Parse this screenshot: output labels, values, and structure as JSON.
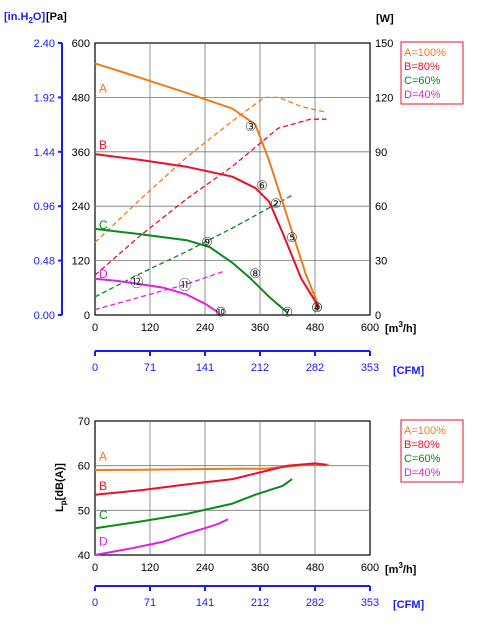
{
  "colors": {
    "A": "#f07a1a",
    "B": "#e8102a",
    "C": "#0a8a1a",
    "D": "#e020e0",
    "secondary_axis": "#1a1aff",
    "legend_border": "#e8102a"
  },
  "legend": {
    "A": "A=100%",
    "B": "B=80%",
    "C": "C=60%",
    "D": "D=40%"
  },
  "chart_data": [
    {
      "type": "line",
      "name": "performance",
      "xlabel_html": "[m³/h]",
      "x_unit_base": "[m",
      "x_unit_sup": "3",
      "x_unit_tail": "/h]",
      "xlim": [
        0,
        600
      ],
      "x_ticks": [
        "0",
        "120",
        "240",
        "360",
        "480",
        "600"
      ],
      "y_left_pa_label": "[Pa]",
      "y_left_pa_ticks": [
        "0",
        "120",
        "240",
        "360",
        "480",
        "600"
      ],
      "ylim_pa": [
        0,
        600
      ],
      "y_left_inh2o_label_base": "[in.H",
      "y_left_inh2o_sub": "2",
      "y_left_inh2o_tail": "O]",
      "y_left_inh2o_ticks": [
        "0.00",
        "0.48",
        "0.96",
        "1.44",
        "1.92",
        "2.40"
      ],
      "y_right_label": "[W]",
      "y_right_ticks": [
        "0",
        "30",
        "60",
        "90",
        "120",
        "150"
      ],
      "ylim_w": [
        0,
        150
      ],
      "cfm_label": "[CFM]",
      "cfm_ticks": [
        "0",
        "71",
        "141",
        "212",
        "282",
        "353"
      ],
      "curve_letters": [
        "A",
        "B",
        "C",
        "D"
      ],
      "pressure_series": [
        {
          "name": "A",
          "x": [
            0,
            100,
            200,
            300,
            350,
            380,
            420,
            460,
            490
          ],
          "y": [
            555,
            523,
            490,
            455,
            420,
            340,
            215,
            90,
            15
          ]
        },
        {
          "name": "B",
          "x": [
            0,
            100,
            200,
            300,
            350,
            380,
            410,
            450,
            490
          ],
          "y": [
            355,
            342,
            327,
            305,
            280,
            250,
            180,
            80,
            15
          ]
        },
        {
          "name": "C",
          "x": [
            0,
            100,
            200,
            250,
            300,
            340,
            380,
            420
          ],
          "y": [
            190,
            178,
            165,
            150,
            115,
            80,
            40,
            5
          ]
        },
        {
          "name": "D",
          "x": [
            0,
            50,
            100,
            150,
            200,
            240,
            270
          ],
          "y": [
            80,
            75,
            68,
            60,
            45,
            25,
            5
          ]
        }
      ],
      "power_series": [
        {
          "name": "A",
          "x": [
            0,
            100,
            200,
            300,
            370,
            400,
            450,
            500
          ],
          "y": [
            40,
            64,
            87,
            107,
            120,
            120,
            115,
            112
          ]
        },
        {
          "name": "B",
          "x": [
            0,
            100,
            200,
            300,
            400,
            470,
            490,
            505
          ],
          "y": [
            22,
            44,
            64,
            82,
            103,
            108,
            108,
            108
          ]
        },
        {
          "name": "C",
          "x": [
            0,
            100,
            200,
            300,
            430
          ],
          "y": [
            10,
            23,
            35,
            48,
            66
          ]
        },
        {
          "name": "D",
          "x": [
            0,
            100,
            200,
            280
          ],
          "y": [
            3,
            10,
            17,
            24
          ]
        }
      ],
      "operating_points": [
        {
          "label": "①",
          "x": 485,
          "y": 15
        },
        {
          "label": "②",
          "x": 395,
          "y": 245
        },
        {
          "label": "③",
          "x": 340,
          "y": 415
        },
        {
          "label": "④",
          "x": 485,
          "y": 15
        },
        {
          "label": "⑤",
          "x": 430,
          "y": 170
        },
        {
          "label": "⑥",
          "x": 365,
          "y": 285
        },
        {
          "label": "⑦",
          "x": 420,
          "y": 5
        },
        {
          "label": "⑧",
          "x": 350,
          "y": 90
        },
        {
          "label": "⑨",
          "x": 245,
          "y": 160
        },
        {
          "label": "⑩",
          "x": 275,
          "y": 5
        },
        {
          "label": "⑪",
          "x": 195,
          "y": 65
        },
        {
          "label": "⑫",
          "x": 90,
          "y": 72
        }
      ]
    },
    {
      "type": "line",
      "name": "sound",
      "ylabel_base": "L",
      "ylabel_sub": "p",
      "ylabel_tail": "[dB(A)]",
      "xlim": [
        0,
        600
      ],
      "x_ticks": [
        "0",
        "120",
        "240",
        "360",
        "480",
        "600"
      ],
      "x_unit_base": "[m",
      "x_unit_sup": "3",
      "x_unit_tail": "/h]",
      "ylim": [
        40,
        70
      ],
      "y_ticks": [
        "40",
        "50",
        "60",
        "70"
      ],
      "cfm_label": "[CFM]",
      "cfm_ticks": [
        "0",
        "71",
        "141",
        "212",
        "282",
        "353"
      ],
      "curve_letters": [
        "A",
        "B",
        "C",
        "D"
      ],
      "series": [
        {
          "name": "A",
          "x": [
            0,
            100,
            200,
            300,
            370,
            420,
            470,
            510
          ],
          "y": [
            59,
            59.1,
            59.2,
            59.3,
            59.3,
            59.8,
            60.3,
            60.2
          ]
        },
        {
          "name": "B",
          "x": [
            0,
            100,
            200,
            300,
            360,
            420,
            480,
            505
          ],
          "y": [
            53.5,
            54.5,
            55.8,
            57,
            58.5,
            60,
            60.5,
            60.2
          ]
        },
        {
          "name": "C",
          "x": [
            0,
            100,
            200,
            300,
            350,
            410,
            430
          ],
          "y": [
            46,
            47.5,
            49.2,
            51.5,
            53.5,
            55.5,
            57
          ]
        },
        {
          "name": "D",
          "x": [
            0,
            80,
            150,
            200,
            240,
            270,
            290
          ],
          "y": [
            40,
            41.5,
            43,
            44.8,
            46,
            47,
            48
          ]
        }
      ]
    }
  ]
}
